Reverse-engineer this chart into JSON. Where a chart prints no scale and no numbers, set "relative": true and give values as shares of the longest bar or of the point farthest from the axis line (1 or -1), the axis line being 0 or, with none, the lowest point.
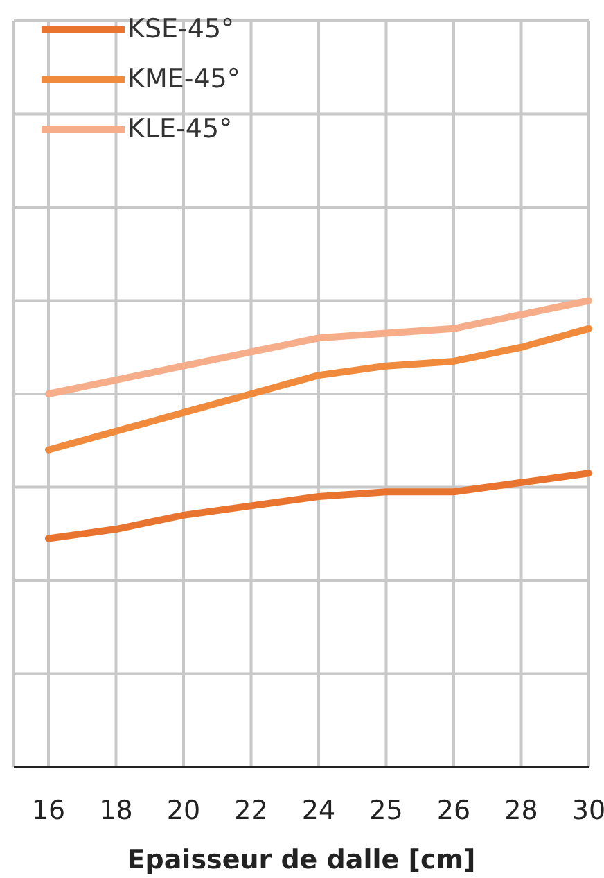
{
  "chart_data": {
    "type": "line",
    "xlabel": "Epaisseur de dalle [cm]",
    "categories": [
      "16",
      "18",
      "20",
      "22",
      "24",
      "25",
      "26",
      "28",
      "30"
    ],
    "relative": true,
    "grid": true,
    "legend": "top left",
    "marker": "none",
    "line_style": "solid",
    "series": [
      {
        "name": "KSE-45°",
        "color": "#e8742f",
        "values": [
          0.49,
          0.51,
          0.54,
          0.56,
          0.58,
          0.59,
          0.59,
          0.61,
          0.63
        ]
      },
      {
        "name": "KME-45°",
        "color": "#f08a3c",
        "values": [
          0.68,
          0.72,
          0.76,
          0.8,
          0.84,
          0.86,
          0.87,
          0.9,
          0.94
        ]
      },
      {
        "name": "KLE-45°",
        "color": "#f5ad8a",
        "values": [
          0.8,
          0.83,
          0.86,
          0.89,
          0.92,
          0.93,
          0.94,
          0.97,
          1
        ]
      }
    ]
  }
}
